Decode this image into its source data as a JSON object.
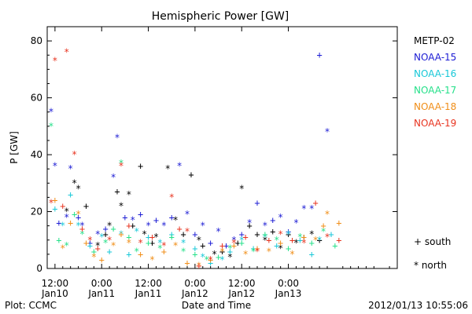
{
  "chart_data": {
    "type": "scatter",
    "title": "Hemispheric Power [GW]",
    "xlabel": "Date and Time",
    "ylabel": "P [GW]",
    "ylim": [
      0,
      85
    ],
    "y_ticks": [
      "0",
      "20",
      "40",
      "60",
      "80"
    ],
    "x_range_hours": [
      -2,
      88
    ],
    "x_ticks": [
      {
        "hour": 0,
        "line1": "12:00",
        "line2": "Jan10"
      },
      {
        "hour": 12,
        "line1": "0:00",
        "line2": "Jan11"
      },
      {
        "hour": 24,
        "line1": "12:00",
        "line2": "Jan11"
      },
      {
        "hour": 36,
        "line1": "0:00",
        "line2": "Jan12"
      },
      {
        "hour": 48,
        "line1": "12:00",
        "line2": "Jan12"
      },
      {
        "hour": 60,
        "line1": "0:00",
        "line2": "Jan13"
      }
    ],
    "marker_legend": [
      {
        "symbol": "+",
        "label": "south"
      },
      {
        "symbol": "*",
        "label": "north"
      }
    ],
    "grid": false,
    "legend_position": "right",
    "series": [
      {
        "name": "METP-02",
        "color": "#000000",
        "points": [
          [
            3,
            20,
            "*"
          ],
          [
            5,
            30,
            "*"
          ],
          [
            6,
            28,
            "*"
          ],
          [
            8,
            22,
            "+"
          ],
          [
            11,
            8,
            "*"
          ],
          [
            13,
            12,
            "+"
          ],
          [
            14,
            15,
            "*"
          ],
          [
            16,
            27,
            "+"
          ],
          [
            17,
            22,
            "*"
          ],
          [
            19,
            26,
            "*"
          ],
          [
            20,
            15,
            "+"
          ],
          [
            22,
            36,
            "+"
          ],
          [
            23,
            12,
            "*"
          ],
          [
            25,
            9,
            "+"
          ],
          [
            26,
            11,
            "*"
          ],
          [
            29,
            35,
            "*"
          ],
          [
            31,
            17,
            "*"
          ],
          [
            33,
            12,
            "+"
          ],
          [
            35,
            33,
            "+"
          ],
          [
            37,
            10,
            "*"
          ],
          [
            38,
            8,
            "+"
          ],
          [
            41,
            5,
            "*"
          ],
          [
            43,
            6,
            "+"
          ],
          [
            45,
            4,
            "*"
          ],
          [
            47,
            9,
            "+"
          ],
          [
            48,
            28,
            "*"
          ],
          [
            50,
            15,
            "+"
          ],
          [
            52,
            12,
            "+"
          ],
          [
            54,
            10,
            "*"
          ],
          [
            56,
            13,
            "+"
          ],
          [
            58,
            7,
            "*"
          ],
          [
            60,
            12,
            "+"
          ],
          [
            62,
            9,
            "*"
          ],
          [
            64,
            11,
            "+"
          ],
          [
            66,
            12,
            "*"
          ],
          [
            68,
            10,
            "+"
          ]
        ]
      },
      {
        "name": "NOAA-15",
        "color": "#1c1cd4",
        "points": [
          [
            -1,
            55,
            "*"
          ],
          [
            0,
            36,
            "*"
          ],
          [
            1,
            16,
            "+"
          ],
          [
            3,
            18,
            "*"
          ],
          [
            4,
            35,
            "*"
          ],
          [
            6,
            18,
            "+"
          ],
          [
            7,
            15,
            "*"
          ],
          [
            9,
            9,
            "+"
          ],
          [
            11,
            12,
            "*"
          ],
          [
            13,
            14,
            "+"
          ],
          [
            15,
            32,
            "*"
          ],
          [
            16,
            46,
            "*"
          ],
          [
            18,
            18,
            "+"
          ],
          [
            20,
            17,
            "*"
          ],
          [
            22,
            19,
            "+"
          ],
          [
            24,
            15,
            "*"
          ],
          [
            26,
            17,
            "+"
          ],
          [
            28,
            15,
            "*"
          ],
          [
            30,
            18,
            "+"
          ],
          [
            32,
            36,
            "*"
          ],
          [
            34,
            19,
            "*"
          ],
          [
            36,
            12,
            "+"
          ],
          [
            38,
            15,
            "*"
          ],
          [
            40,
            9,
            "+"
          ],
          [
            42,
            13,
            "*"
          ],
          [
            44,
            8,
            "+"
          ],
          [
            46,
            10,
            "*"
          ],
          [
            48,
            12,
            "+"
          ],
          [
            50,
            16,
            "*"
          ],
          [
            52,
            23,
            "+"
          ],
          [
            54,
            15,
            "*"
          ],
          [
            56,
            17,
            "+"
          ],
          [
            58,
            18,
            "*"
          ],
          [
            60,
            13,
            "+"
          ],
          [
            62,
            16,
            "*"
          ],
          [
            64,
            21,
            "*"
          ],
          [
            66,
            21,
            "*"
          ],
          [
            68,
            75,
            "+"
          ],
          [
            70,
            48,
            "*"
          ],
          [
            71,
            12,
            "+"
          ]
        ]
      },
      {
        "name": "NOAA-16",
        "color": "#18c8d8",
        "points": [
          [
            0,
            21,
            "+"
          ],
          [
            2,
            15,
            "*"
          ],
          [
            4,
            26,
            "+"
          ],
          [
            6,
            15,
            "*"
          ],
          [
            9,
            8,
            "+"
          ],
          [
            12,
            11,
            "*"
          ],
          [
            14,
            6,
            "+"
          ],
          [
            17,
            12,
            "*"
          ],
          [
            19,
            5,
            "+"
          ],
          [
            21,
            13,
            "*"
          ],
          [
            24,
            11,
            "+"
          ],
          [
            27,
            9,
            "*"
          ],
          [
            30,
            12,
            "+"
          ],
          [
            33,
            9,
            "*"
          ],
          [
            36,
            7,
            "+"
          ],
          [
            38,
            4,
            "*"
          ],
          [
            40,
            2,
            "+"
          ],
          [
            43,
            3,
            "*"
          ],
          [
            45,
            6,
            "+"
          ],
          [
            48,
            10,
            "*"
          ],
          [
            51,
            7,
            "+"
          ],
          [
            54,
            11,
            "*"
          ],
          [
            57,
            8,
            "+"
          ],
          [
            60,
            12,
            "*"
          ],
          [
            63,
            10,
            "+"
          ],
          [
            66,
            5,
            "+"
          ],
          [
            68,
            10,
            "*"
          ],
          [
            71,
            12,
            "+"
          ]
        ]
      },
      {
        "name": "NOAA-17",
        "color": "#26e08a",
        "points": [
          [
            -1,
            50,
            "*"
          ],
          [
            1,
            10,
            "+"
          ],
          [
            3,
            8,
            "*"
          ],
          [
            5,
            19,
            "+"
          ],
          [
            7,
            12,
            "*"
          ],
          [
            10,
            6,
            "+"
          ],
          [
            13,
            9,
            "*"
          ],
          [
            15,
            14,
            "+"
          ],
          [
            17,
            37,
            "*"
          ],
          [
            19,
            11,
            "+"
          ],
          [
            21,
            6,
            "*"
          ],
          [
            24,
            9,
            "+"
          ],
          [
            27,
            7,
            "*"
          ],
          [
            30,
            11,
            "+"
          ],
          [
            33,
            6,
            "*"
          ],
          [
            36,
            5,
            "+"
          ],
          [
            39,
            3,
            "*"
          ],
          [
            42,
            4,
            "+"
          ],
          [
            45,
            7,
            "*"
          ],
          [
            48,
            9,
            "+"
          ],
          [
            51,
            6,
            "*"
          ],
          [
            54,
            12,
            "+"
          ],
          [
            57,
            10,
            "*"
          ],
          [
            60,
            7,
            "+"
          ],
          [
            63,
            11,
            "*"
          ],
          [
            66,
            9,
            "+"
          ],
          [
            69,
            13,
            "*"
          ],
          [
            72,
            8,
            "+"
          ]
        ]
      },
      {
        "name": "NOAA-18",
        "color": "#f08e18",
        "points": [
          [
            0,
            24,
            "+"
          ],
          [
            2,
            7,
            "*"
          ],
          [
            4,
            16,
            "+"
          ],
          [
            6,
            19,
            "*"
          ],
          [
            8,
            9,
            "+"
          ],
          [
            10,
            4,
            "*"
          ],
          [
            12,
            3,
            "+"
          ],
          [
            15,
            8,
            "*"
          ],
          [
            17,
            12,
            "+"
          ],
          [
            19,
            9,
            "*"
          ],
          [
            22,
            5,
            "+"
          ],
          [
            25,
            3,
            "*"
          ],
          [
            28,
            6,
            "+"
          ],
          [
            31,
            8,
            "*"
          ],
          [
            34,
            2,
            "+"
          ],
          [
            37,
            1,
            "*"
          ],
          [
            40,
            3,
            "+"
          ],
          [
            43,
            6,
            "*"
          ],
          [
            46,
            8,
            "+"
          ],
          [
            49,
            5,
            "*"
          ],
          [
            52,
            7,
            "+"
          ],
          [
            55,
            6,
            "*"
          ],
          [
            58,
            9,
            "+"
          ],
          [
            61,
            5,
            "*"
          ],
          [
            64,
            11,
            "+"
          ],
          [
            67,
            10,
            "*"
          ],
          [
            69,
            15,
            "+"
          ],
          [
            70,
            19,
            "*"
          ],
          [
            73,
            16,
            "+"
          ]
        ]
      },
      {
        "name": "NOAA-19",
        "color": "#e83420",
        "points": [
          [
            -1,
            23,
            "*"
          ],
          [
            0,
            73,
            "*"
          ],
          [
            2,
            22,
            "+"
          ],
          [
            3,
            76,
            "*"
          ],
          [
            5,
            40,
            "*"
          ],
          [
            7,
            14,
            "+"
          ],
          [
            9,
            10,
            "*"
          ],
          [
            11,
            7,
            "+"
          ],
          [
            14,
            10,
            "*"
          ],
          [
            17,
            36,
            "*"
          ],
          [
            19,
            15,
            "+"
          ],
          [
            22,
            9,
            "*"
          ],
          [
            25,
            11,
            "+"
          ],
          [
            28,
            8,
            "*"
          ],
          [
            30,
            25,
            "*"
          ],
          [
            32,
            14,
            "+"
          ],
          [
            34,
            13,
            "*"
          ],
          [
            37,
            1,
            "+"
          ],
          [
            40,
            3,
            "*"
          ],
          [
            43,
            8,
            "+"
          ],
          [
            46,
            9,
            "*"
          ],
          [
            49,
            11,
            "+"
          ],
          [
            52,
            6,
            "*"
          ],
          [
            55,
            10,
            "+"
          ],
          [
            58,
            12,
            "*"
          ],
          [
            61,
            10,
            "+"
          ],
          [
            64,
            9,
            "*"
          ],
          [
            67,
            23,
            "+"
          ],
          [
            70,
            11,
            "*"
          ],
          [
            73,
            10,
            "+"
          ]
        ]
      }
    ]
  },
  "footer": {
    "left": "Plot: CCMC",
    "right": "2012/01/13 10:55:06"
  }
}
